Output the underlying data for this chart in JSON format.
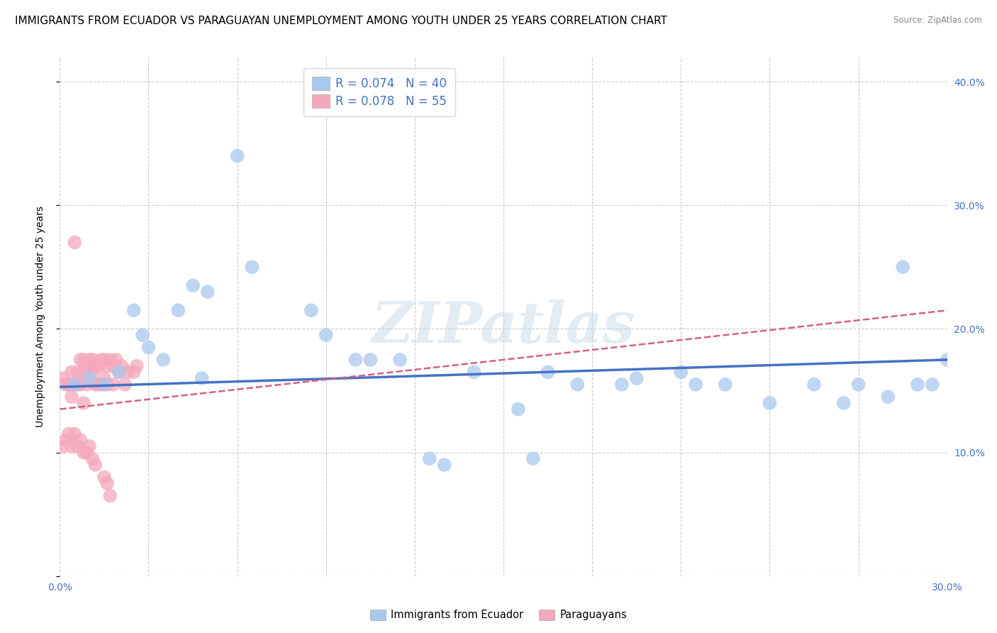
{
  "title": "IMMIGRANTS FROM ECUADOR VS PARAGUAYAN UNEMPLOYMENT AMONG YOUTH UNDER 25 YEARS CORRELATION CHART",
  "source": "Source: ZipAtlas.com",
  "ylabel": "Unemployment Among Youth under 25 years",
  "xlabel": "",
  "xlim": [
    0.0,
    0.3
  ],
  "ylim": [
    0.0,
    0.42
  ],
  "xtick_vals": [
    0.0,
    0.03,
    0.06,
    0.09,
    0.12,
    0.15,
    0.18,
    0.21,
    0.24,
    0.27,
    0.3
  ],
  "xtick_labels": [
    "0.0%",
    "",
    "",
    "",
    "",
    "",
    "",
    "",
    "",
    "",
    "30.0%"
  ],
  "ytick_vals": [
    0.0,
    0.1,
    0.2,
    0.3,
    0.4
  ],
  "ytick_labels": [
    "",
    "10.0%",
    "20.0%",
    "30.0%",
    "40.0%"
  ],
  "blue_R": 0.074,
  "blue_N": 40,
  "pink_R": 0.078,
  "pink_N": 55,
  "blue_color": "#aac8ee",
  "pink_color": "#f4a8bc",
  "blue_line_color": "#4472c4",
  "pink_line_color": "#d46080",
  "legend_label_blue": "Immigrants from Ecuador",
  "legend_label_pink": "Paraguayans",
  "blue_x": [
    0.005,
    0.01,
    0.015,
    0.02,
    0.025,
    0.028,
    0.03,
    0.035,
    0.04,
    0.045,
    0.048,
    0.05,
    0.06,
    0.065,
    0.085,
    0.09,
    0.1,
    0.105,
    0.115,
    0.125,
    0.13,
    0.14,
    0.155,
    0.16,
    0.165,
    0.175,
    0.19,
    0.195,
    0.21,
    0.215,
    0.225,
    0.24,
    0.255,
    0.265,
    0.27,
    0.28,
    0.285,
    0.29,
    0.295,
    0.3
  ],
  "blue_y": [
    0.155,
    0.16,
    0.155,
    0.165,
    0.215,
    0.195,
    0.185,
    0.175,
    0.215,
    0.235,
    0.16,
    0.23,
    0.34,
    0.25,
    0.215,
    0.195,
    0.175,
    0.175,
    0.175,
    0.095,
    0.09,
    0.165,
    0.135,
    0.095,
    0.165,
    0.155,
    0.155,
    0.16,
    0.165,
    0.155,
    0.155,
    0.14,
    0.155,
    0.14,
    0.155,
    0.145,
    0.25,
    0.155,
    0.155,
    0.175
  ],
  "pink_x": [
    0.001,
    0.002,
    0.003,
    0.004,
    0.004,
    0.005,
    0.005,
    0.006,
    0.006,
    0.007,
    0.007,
    0.008,
    0.008,
    0.008,
    0.009,
    0.009,
    0.01,
    0.01,
    0.011,
    0.011,
    0.012,
    0.012,
    0.013,
    0.013,
    0.014,
    0.014,
    0.015,
    0.015,
    0.016,
    0.016,
    0.017,
    0.018,
    0.018,
    0.019,
    0.02,
    0.021,
    0.022,
    0.023,
    0.025,
    0.026,
    0.001,
    0.002,
    0.003,
    0.004,
    0.005,
    0.006,
    0.007,
    0.008,
    0.009,
    0.01,
    0.011,
    0.012,
    0.015,
    0.016,
    0.017
  ],
  "pink_y": [
    0.16,
    0.155,
    0.155,
    0.165,
    0.145,
    0.27,
    0.155,
    0.155,
    0.165,
    0.175,
    0.155,
    0.165,
    0.175,
    0.14,
    0.17,
    0.155,
    0.175,
    0.16,
    0.175,
    0.165,
    0.17,
    0.155,
    0.17,
    0.155,
    0.175,
    0.155,
    0.175,
    0.16,
    0.17,
    0.155,
    0.175,
    0.17,
    0.155,
    0.175,
    0.165,
    0.17,
    0.155,
    0.165,
    0.165,
    0.17,
    0.105,
    0.11,
    0.115,
    0.105,
    0.115,
    0.105,
    0.11,
    0.1,
    0.1,
    0.105,
    0.095,
    0.09,
    0.08,
    0.075,
    0.065
  ],
  "blue_trend_x": [
    0.0,
    0.3
  ],
  "blue_trend_y": [
    0.153,
    0.175
  ],
  "pink_trend_x": [
    0.0,
    0.3
  ],
  "pink_trend_y": [
    0.135,
    0.215
  ],
  "watermark": "ZIPatlas",
  "bg_color": "#ffffff",
  "grid_color": "#cccccc",
  "title_fontsize": 11,
  "axis_fontsize": 9,
  "ylabel_fontsize": 10
}
